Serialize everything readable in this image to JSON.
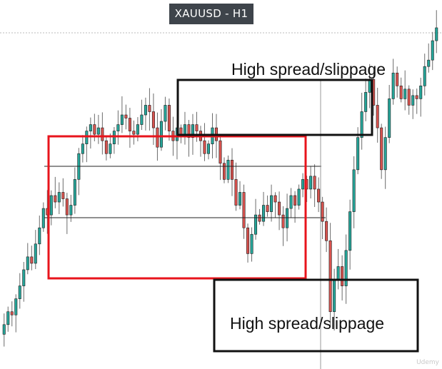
{
  "title": "XAUUSD - H1",
  "annotations": {
    "top": "High spread/slippage",
    "bottom": "High spread/slippage"
  },
  "watermark": "Udemy",
  "colors": {
    "bull": "#26a69a",
    "bear": "#d9534f",
    "wick": "#6b6b6b",
    "range_box": "#e8141c",
    "spread_box": "#111111",
    "level_line": "#222222",
    "title_bg": "#3e444b"
  },
  "chart_data": {
    "type": "candlestick",
    "symbol": "XAUUSD",
    "timeframe": "H1",
    "price_range": [
      0,
      100
    ],
    "grid": false,
    "closes": [
      10,
      14,
      13,
      18,
      22,
      27,
      31,
      29,
      35,
      40,
      46,
      44,
      50,
      48,
      51,
      49,
      44,
      47,
      55,
      63,
      66,
      70,
      72,
      69,
      71,
      67,
      63,
      66,
      70,
      72,
      75,
      74,
      70,
      69,
      72,
      75,
      78,
      76,
      71,
      65,
      73,
      78,
      70,
      67,
      71,
      69,
      72,
      68,
      72,
      70,
      67,
      63,
      66,
      71,
      67,
      60,
      55,
      61,
      55,
      47,
      51,
      40,
      32,
      38,
      44,
      42,
      47,
      45,
      50,
      48,
      44,
      40,
      46,
      50,
      47,
      52,
      55,
      52,
      56,
      52,
      48,
      42,
      36,
      14,
      24,
      28,
      22,
      33,
      45,
      58,
      68,
      76,
      82,
      86,
      78,
      71,
      58,
      68,
      80,
      88,
      84,
      80,
      83,
      78,
      81,
      80,
      84,
      90,
      92,
      98,
      102
    ]
  }
}
